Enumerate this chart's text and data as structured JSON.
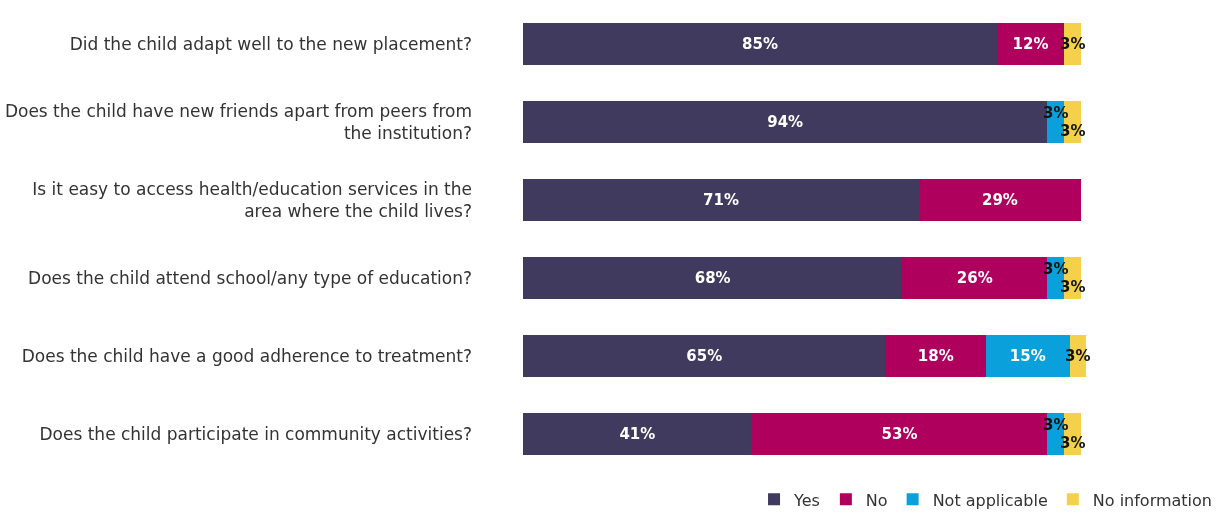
{
  "chart_data": {
    "type": "bar",
    "orientation": "horizontal",
    "stacked": true,
    "legend": "bottom",
    "categories": [
      "Did the child adapt well to the new placement?",
      "Does the child have new friends apart from peers from the institution?",
      "Is it easy to access health/education services in the area where the child lives?",
      "Does the child attend school/any type of education?",
      "Does the child have a good adherence to treatment?",
      "Does the child participate in community activities?"
    ],
    "series": [
      {
        "name": "Yes",
        "color": "#3f3a5e",
        "values": [
          85,
          94,
          71,
          68,
          65,
          41
        ],
        "value_labels": [
          "85%",
          "94%",
          "71%",
          "68%",
          "65%",
          "41%"
        ]
      },
      {
        "name": "No",
        "color": "#b0005e",
        "values": [
          12,
          null,
          29,
          26,
          18,
          53
        ],
        "value_labels": [
          "12%",
          null,
          "29%",
          "26%",
          "18%",
          "53%"
        ]
      },
      {
        "name": "Not applicable",
        "color": "#0aa0dc",
        "values": [
          null,
          3,
          null,
          3,
          15,
          3
        ],
        "value_labels": [
          null,
          "3%",
          null,
          "3%",
          "15%",
          "3%"
        ]
      },
      {
        "name": "No information",
        "color": "#f5d04a",
        "values": [
          3,
          3,
          null,
          3,
          3,
          3
        ],
        "value_labels": [
          "3%",
          "3%",
          null,
          "3%",
          "3%",
          "3%"
        ]
      }
    ]
  }
}
